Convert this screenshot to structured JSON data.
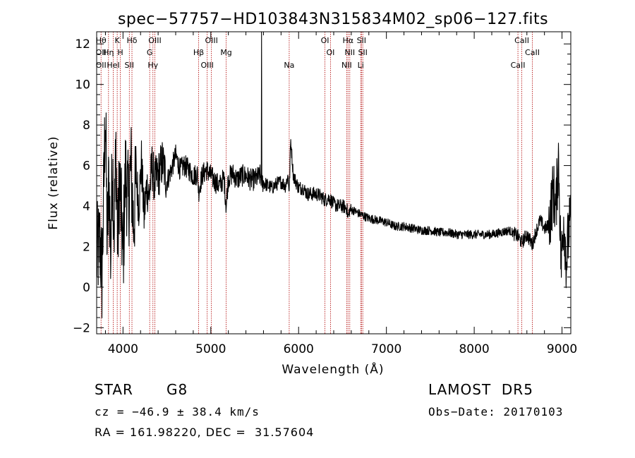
{
  "chart_data": {
    "type": "line",
    "title": "spec−57757−HD103843N315834M02_sp06−127.fits",
    "xlabel": "Wavelength (Å)",
    "ylabel": "Flux (relative)",
    "xlim": [
      3700,
      9100
    ],
    "ylim": [
      -2.3,
      12.6
    ],
    "x_ticks": [
      4000,
      5000,
      6000,
      7000,
      8000,
      9000
    ],
    "x_tick_labels": [
      "4000",
      "5000",
      "6000",
      "7000",
      "8000",
      "9000"
    ],
    "y_ticks": [
      -2,
      0,
      2,
      4,
      6,
      8,
      10,
      12
    ],
    "y_tick_labels": [
      "−2",
      "0",
      "2",
      "4",
      "6",
      "8",
      "10",
      "12"
    ],
    "grid": false,
    "series": [
      {
        "color": "#000000",
        "x": [
          3700,
          3740,
          3760,
          3780,
          3800,
          3820,
          3840,
          3860,
          3880,
          3900,
          3920,
          3940,
          3960,
          3980,
          4000,
          4030,
          4060,
          4090,
          4120,
          4150,
          4180,
          4210,
          4240,
          4270,
          4300,
          4330,
          4360,
          4400,
          4450,
          4500,
          4550,
          4600,
          4650,
          4700,
          4750,
          4800,
          4850,
          4861,
          4900,
          4950,
          5000,
          5050,
          5100,
          5150,
          5175,
          5200,
          5250,
          5300,
          5350,
          5400,
          5450,
          5500,
          5560,
          5575,
          5578,
          5580,
          5590,
          5650,
          5700,
          5750,
          5800,
          5850,
          5880,
          5893,
          5910,
          5940,
          5970,
          6000,
          6050,
          6100,
          6150,
          6200,
          6250,
          6300,
          6350,
          6400,
          6450,
          6500,
          6550,
          6563,
          6580,
          6620,
          6700,
          6800,
          6900,
          7000,
          7100,
          7200,
          7300,
          7400,
          7500,
          7600,
          7700,
          7800,
          7900,
          8000,
          8100,
          8200,
          8300,
          8400,
          8498,
          8542,
          8600,
          8662,
          8700,
          8750,
          8800,
          8850,
          8900,
          8930,
          8960,
          8990,
          9020,
          9050,
          9080
        ],
        "y": [
          1.5,
          2.2,
          0.5,
          4.5,
          8.9,
          2.0,
          5.5,
          1.5,
          6.5,
          3.0,
          6.8,
          2.0,
          5.5,
          3.5,
          1.5,
          5.8,
          4.0,
          6.0,
          3.0,
          5.5,
          4.0,
          6.2,
          3.5,
          5.0,
          4.5,
          6.0,
          5.2,
          5.5,
          6.2,
          5.2,
          5.8,
          6.5,
          5.8,
          6.0,
          5.8,
          5.5,
          5.6,
          4.7,
          5.5,
          5.8,
          5.5,
          5.2,
          5.0,
          5.4,
          4.0,
          5.4,
          5.6,
          5.3,
          5.5,
          5.5,
          5.3,
          5.3,
          5.5,
          5.4,
          12.8,
          5.2,
          5.2,
          5.0,
          4.9,
          5.1,
          5.2,
          5.0,
          5.5,
          4.7,
          7.3,
          5.5,
          5.2,
          4.9,
          4.9,
          4.6,
          4.6,
          4.6,
          4.5,
          4.3,
          4.4,
          4.1,
          4.0,
          4.0,
          3.9,
          3.4,
          3.8,
          3.8,
          3.6,
          3.4,
          3.3,
          3.2,
          3.0,
          3.0,
          2.9,
          2.8,
          2.8,
          2.7,
          2.7,
          2.6,
          2.6,
          2.6,
          2.6,
          2.6,
          2.7,
          2.8,
          2.5,
          2.2,
          2.6,
          2.1,
          2.7,
          3.3,
          2.9,
          3.0,
          4.8,
          3.8,
          6.5,
          1.0,
          3.5,
          1.2,
          3.0
        ]
      }
    ],
    "lines": [
      {
        "x": 3750,
        "labels": [
          "Hθ",
          "OII",
          "OII"
        ]
      },
      {
        "x": 3835,
        "labels": [
          "Hη"
        ]
      },
      {
        "x": 3889,
        "labels": [
          "HeI"
        ]
      },
      {
        "x": 3934,
        "labels": [
          "K"
        ]
      },
      {
        "x": 3969,
        "labels": [
          "H"
        ]
      },
      {
        "x": 4072,
        "labels": [
          "SII"
        ]
      },
      {
        "x": 4102,
        "labels": [
          "Hδ"
        ]
      },
      {
        "x": 4304,
        "labels": [
          "G"
        ]
      },
      {
        "x": 4341,
        "labels": [
          "Hγ"
        ]
      },
      {
        "x": 4363,
        "labels": [
          "OIII"
        ]
      },
      {
        "x": 4861,
        "labels": [
          "Hβ"
        ]
      },
      {
        "x": 4959,
        "labels": [
          "OIII"
        ]
      },
      {
        "x": 5007,
        "labels": [
          "OIII"
        ]
      },
      {
        "x": 5175,
        "labels": [
          "Mg"
        ]
      },
      {
        "x": 5893,
        "labels": [
          "Na"
        ]
      },
      {
        "x": 6300,
        "labels": [
          "OI"
        ]
      },
      {
        "x": 6363,
        "labels": [
          "OI"
        ]
      },
      {
        "x": 6548,
        "labels": [
          "NII"
        ]
      },
      {
        "x": 6563,
        "labels": [
          "Hα"
        ]
      },
      {
        "x": 6583,
        "labels": [
          "NII"
        ]
      },
      {
        "x": 6707,
        "labels": [
          "Li"
        ]
      },
      {
        "x": 6716,
        "labels": [
          "SII"
        ]
      },
      {
        "x": 6731,
        "labels": [
          "SII"
        ]
      },
      {
        "x": 8498,
        "labels": [
          "CaII"
        ]
      },
      {
        "x": 8542,
        "labels": [
          "CaII"
        ]
      },
      {
        "x": 8662,
        "labels": [
          "CaII"
        ]
      }
    ],
    "line_color": "#b00000"
  },
  "info": {
    "object_type": "STAR",
    "subclass": "G8",
    "survey": "LAMOST  DR5",
    "cz": "cz = −46.9 ± 38.4 km/s",
    "obs_date": "Obs−Date: 20170103",
    "coords": "RA = 161.98220, DEC =  31.57604"
  }
}
